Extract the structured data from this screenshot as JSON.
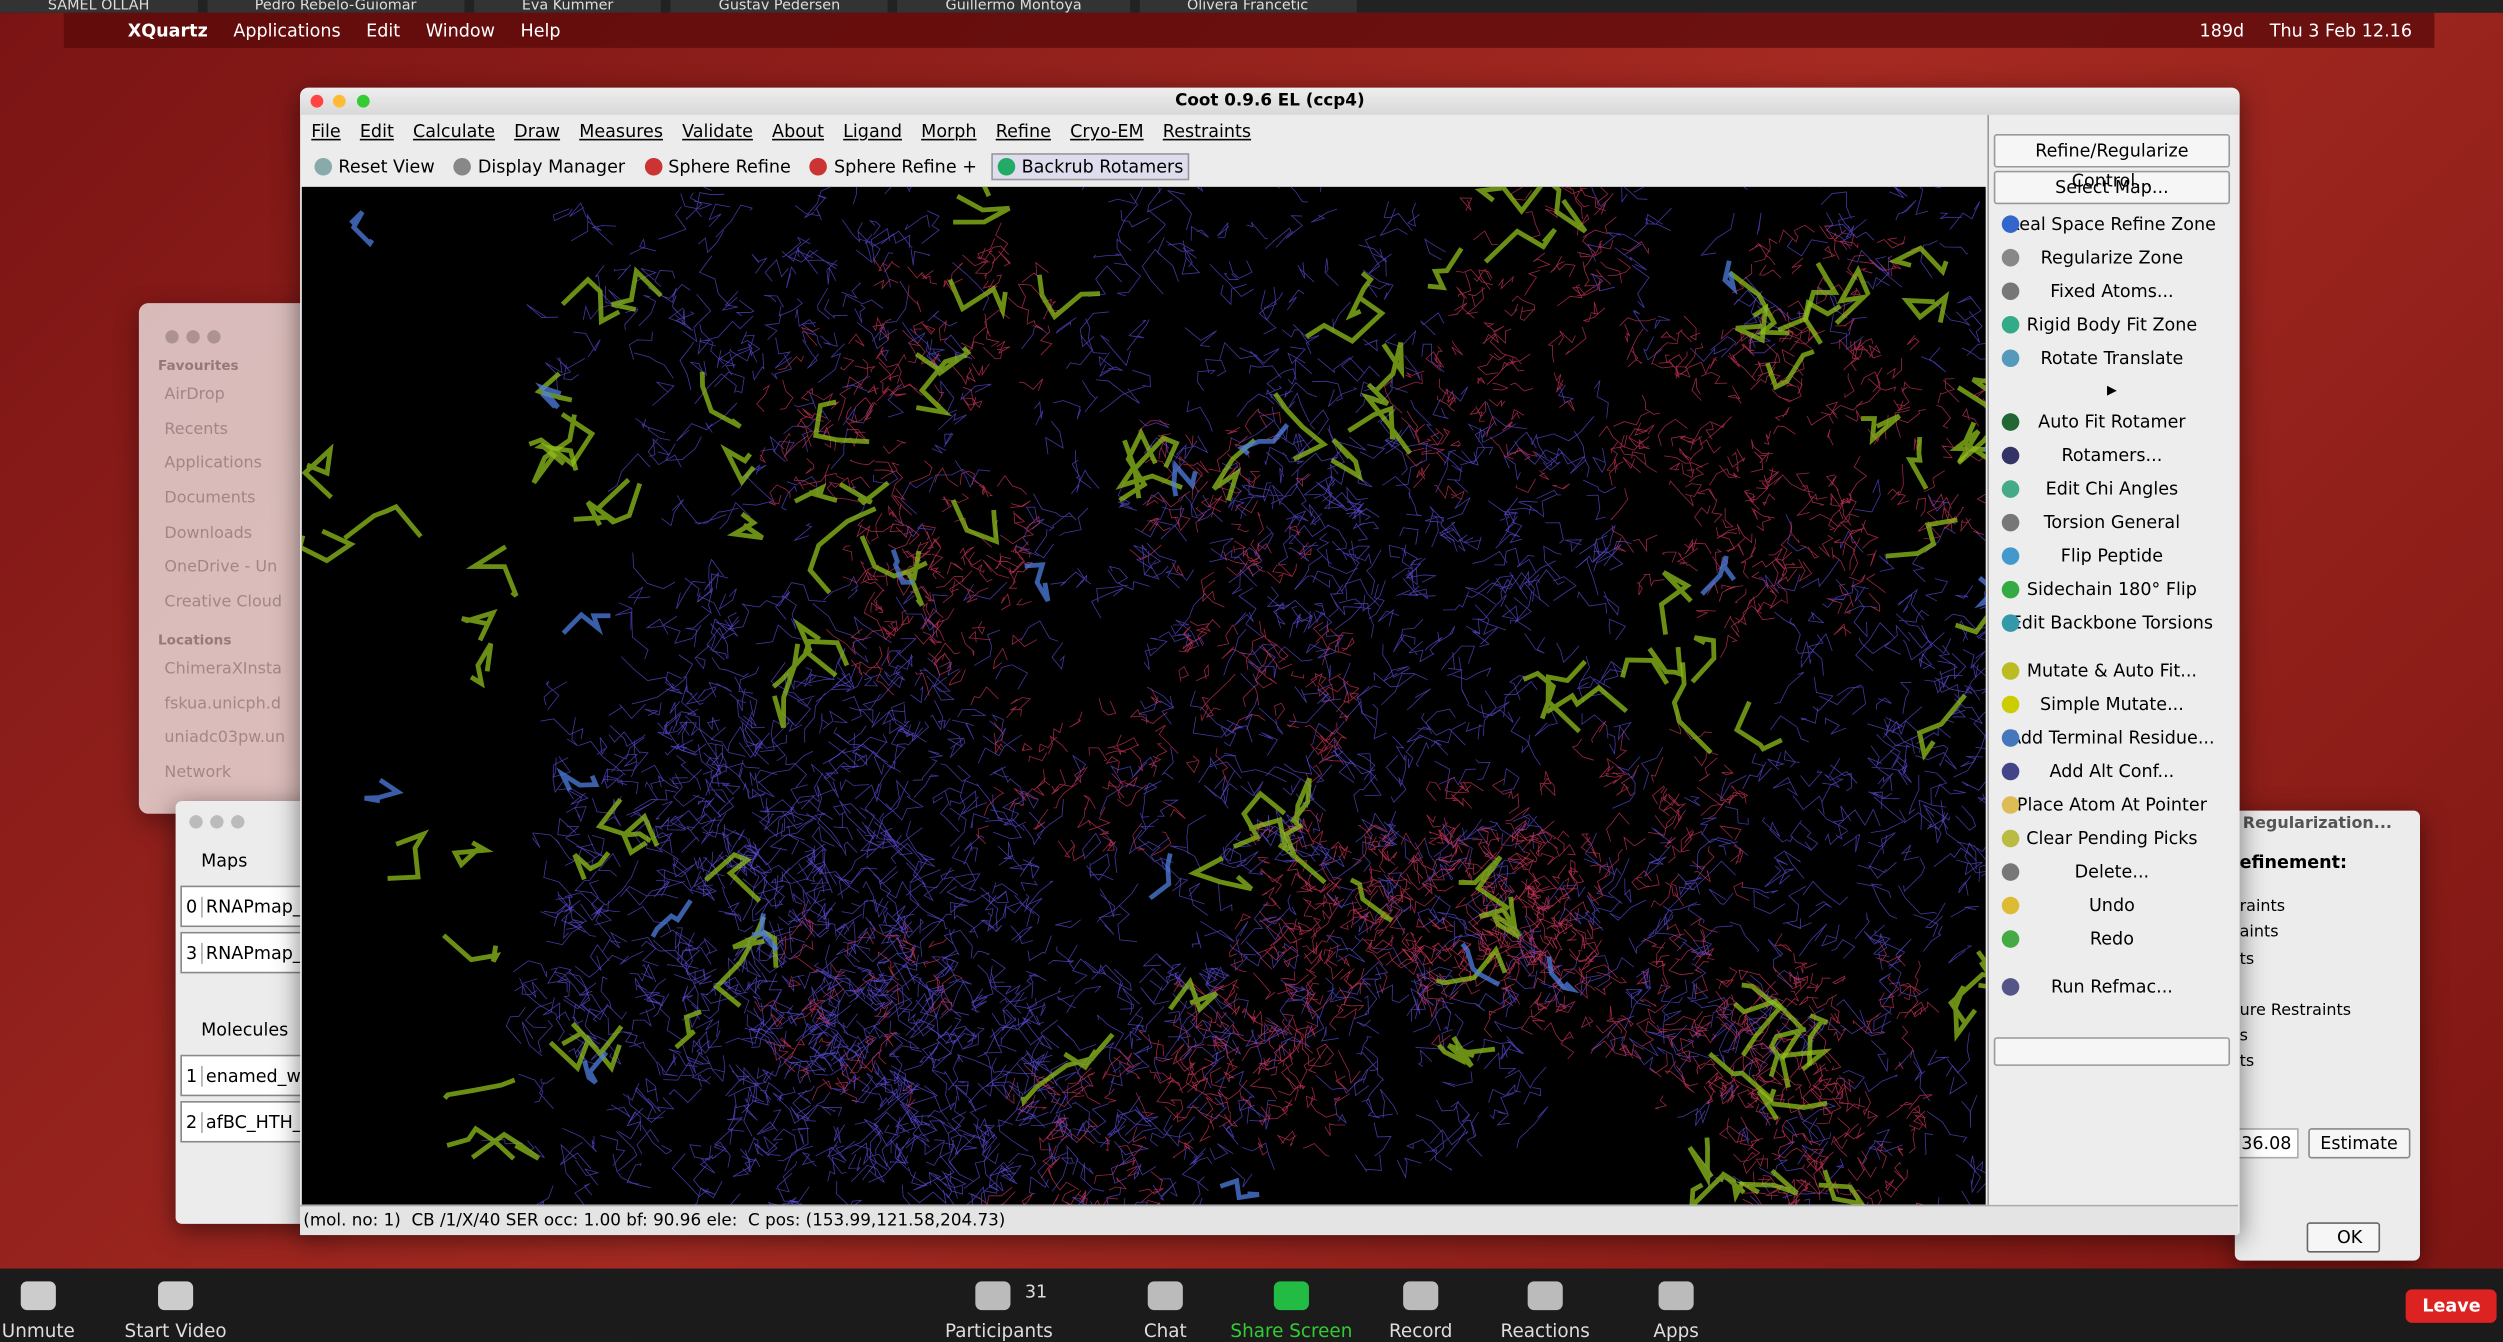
{
  "zoom_top_names": [
    "SAMEL OLLAH",
    "Pedro Rebelo-Guiomar",
    "Eva Kummer",
    "Gustav Pedersen",
    "Guillermo Montoya",
    "Olivera Francetic"
  ],
  "mac_menubar": {
    "app": "XQuartz",
    "menus": [
      "Applications",
      "Edit",
      "Window",
      "Help"
    ],
    "status": "189d",
    "clock": "Thu 3 Feb 12.16"
  },
  "finder": {
    "favourites_title": "Favourites",
    "favourites": [
      "AirDrop",
      "Recents",
      "Applications",
      "Documents",
      "Downloads",
      "OneDrive - Un",
      "Creative Cloud"
    ],
    "locations_title": "Locations",
    "locations": [
      "ChimeraXInsta",
      "fskua.unicph.d",
      "uniadc03pw.un",
      "Network"
    ]
  },
  "maps_dialog": {
    "maps_title": "Maps",
    "maps": [
      {
        "index": "0",
        "name": "RNAPmap_"
      },
      {
        "index": "3",
        "name": "RNAPmap_"
      }
    ],
    "molecules_title": "Molecules",
    "molecules": [
      {
        "index": "1",
        "name": "enamed_w"
      },
      {
        "index": "2",
        "name": "afBC_HTH_"
      }
    ]
  },
  "coot": {
    "title": "Coot 0.9.6 EL (ccp4)",
    "menus": [
      "File",
      "Edit",
      "Calculate",
      "Draw",
      "Measures",
      "Validate",
      "About",
      "Ligand",
      "Morph",
      "Refine",
      "Cryo-EM",
      "Restraints"
    ],
    "toolbar": [
      "Reset View",
      "Display Manager",
      "Sphere Refine",
      "Sphere Refine +",
      "Backrub Rotamers"
    ],
    "status_bar": "(mol. no: 1)  CB /1/X/40 SER occ: 1.00 bf: 90.96 ele:  C pos: (153.99,121.58,204.73)",
    "side_panel": [
      [
        "Refine/Regularize Control...",
        "Select Map..."
      ],
      [
        "Real Space Refine Zone",
        "Regularize Zone",
        "Fixed Atoms...",
        "Rigid Body Fit Zone",
        "Rotate Translate"
      ],
      [
        "Auto Fit Rotamer",
        "Rotamers...",
        "Edit Chi Angles",
        "Torsion General",
        "Flip Peptide",
        "Sidechain 180° Flip",
        "Edit Backbone Torsions"
      ],
      [
        "Mutate & Auto Fit...",
        "Simple Mutate...",
        "Add Terminal Residue...",
        "Add Alt Conf...",
        "Place Atom At Pointer",
        "Clear Pending Picks",
        "Delete...",
        "Undo",
        "Redo"
      ],
      [
        "Run Refmac..."
      ]
    ]
  },
  "regularization": {
    "title": "Regularization...",
    "heading": "efinement:",
    "lines": [
      "raints",
      "aints",
      "ts",
      "ure Restraints",
      "s",
      "ts"
    ],
    "value": "36.08",
    "estimate": "Estimate",
    "ok": "OK"
  },
  "zoom_toolbar": {
    "left": [
      "Unmute",
      "Start Video"
    ],
    "participants_count": "31",
    "center": [
      "Participants",
      "Chat",
      "Share Screen",
      "Record",
      "Reactions",
      "Apps"
    ],
    "leave": "Leave"
  }
}
